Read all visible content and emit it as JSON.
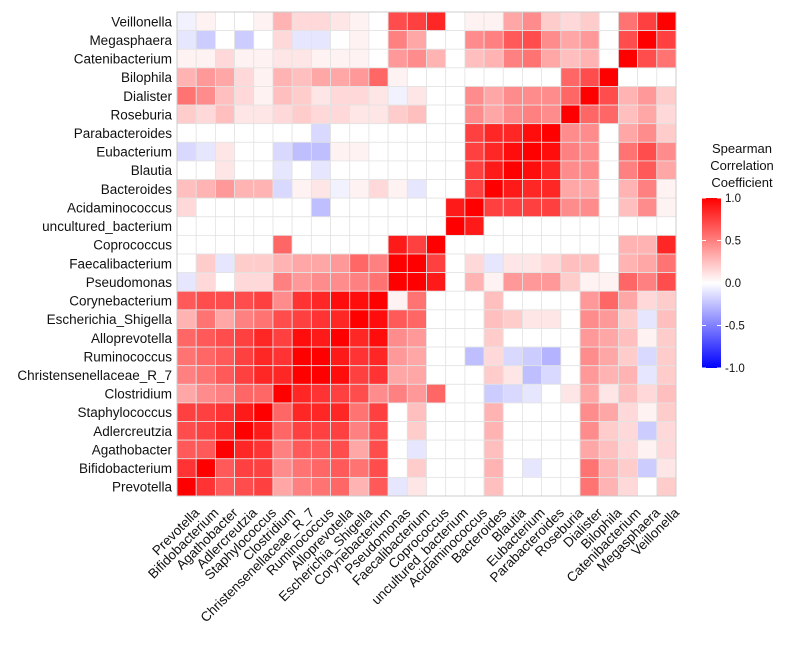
{
  "chart_data": {
    "type": "heatmap",
    "title": "",
    "xlabel": "",
    "ylabel": "",
    "value_range": [
      -1,
      1
    ],
    "grid": true,
    "legend": {
      "title_lines": [
        "Spearman",
        "Correlation",
        "Coefficient"
      ],
      "ticks": [
        {
          "value": 1.0,
          "label": "1.0"
        },
        {
          "value": 0.5,
          "label": "0.5"
        },
        {
          "value": 0.0,
          "label": "0.0"
        },
        {
          "value": -0.5,
          "label": "-0.5"
        },
        {
          "value": -1.0,
          "label": "-1.0"
        }
      ],
      "position": "right",
      "colors": {
        "low": "#0000ff",
        "mid": "#ffffff",
        "high": "#ff0000"
      }
    },
    "x_categories": [
      "Prevotella",
      "Bifidobacterium",
      "Agathobacter",
      "Adlercreutzia",
      "Staphylococcus",
      "Clostridium",
      "Christensenellaceae_R_7",
      "Ruminococcus",
      "Alloprevotella",
      "Escherichia_Shigella",
      "Corynebacterium",
      "Pseudomonas",
      "Faecalibacterium",
      "Coprococcus",
      "uncultured_bacterium",
      "Acidaminococcus",
      "Bacteroides",
      "Blautia",
      "Eubacterium",
      "Parabacteroides",
      "Roseburia",
      "Dialister",
      "Bilophila",
      "Catenibacterium",
      "Megasphaera",
      "Veillonella"
    ],
    "y_categories_top_to_bottom": [
      "Veillonella",
      "Megasphaera",
      "Catenibacterium",
      "Bilophila",
      "Dialister",
      "Roseburia",
      "Parabacteroides",
      "Eubacterium",
      "Blautia",
      "Bacteroides",
      "Acidaminococcus",
      "uncultured_bacterium",
      "Coprococcus",
      "Faecalibacterium",
      "Pseudomonas",
      "Corynebacterium",
      "Escherichia_Shigella",
      "Alloprevotella",
      "Ruminococcus",
      "Christensenellaceae_R_7",
      "Clostridium",
      "Staphylococcus",
      "Adlercreutzia",
      "Agathobacter",
      "Bifidobacterium",
      "Prevotella"
    ],
    "matrix_rows_top_to_bottom": [
      [
        -0.05,
        0.05,
        0,
        0,
        0.05,
        0.3,
        0.15,
        0.15,
        0.1,
        0.05,
        0,
        0.7,
        0.75,
        0.85,
        0,
        0.05,
        0.05,
        0.35,
        0.45,
        0.2,
        0.15,
        0.2,
        0,
        0.55,
        0.75,
        1.0
      ],
      [
        -0.1,
        -0.2,
        0,
        -0.2,
        0,
        0.15,
        -0.1,
        -0.1,
        0,
        0.05,
        0,
        0.5,
        0.35,
        0,
        0,
        0.45,
        0.5,
        0.65,
        0.7,
        0.45,
        0.35,
        0.4,
        0,
        0.7,
        1.0,
        0.75
      ],
      [
        0.05,
        0.05,
        0.15,
        0.05,
        0.05,
        0.1,
        0.1,
        0.05,
        0.05,
        0.05,
        0,
        0.4,
        0.45,
        0.3,
        0,
        0.25,
        0.3,
        0.5,
        0.55,
        0.35,
        0.25,
        0.3,
        0,
        1.0,
        0.7,
        0.55
      ],
      [
        0.3,
        0.4,
        0.35,
        0.15,
        0.05,
        0.3,
        0.25,
        0.35,
        0.35,
        0.4,
        0.6,
        0.05,
        0,
        0,
        0,
        0,
        0,
        0,
        0,
        0,
        0.6,
        0.7,
        1.0,
        0,
        0,
        0
      ],
      [
        0.55,
        0.45,
        0.25,
        0.15,
        0.05,
        0.25,
        0.2,
        0.1,
        0.15,
        0.15,
        0.1,
        -0.05,
        0.1,
        0,
        0,
        0.45,
        0.35,
        0.45,
        0.45,
        0.45,
        0.6,
        1.0,
        0.7,
        0.3,
        0.4,
        0.2
      ],
      [
        0.2,
        0.15,
        0.25,
        0.1,
        0.1,
        0.15,
        0.2,
        0.15,
        0.15,
        0.1,
        0.1,
        0.2,
        0.25,
        0,
        0,
        0.45,
        0.35,
        0.45,
        0.5,
        0.45,
        1.0,
        0.6,
        0.6,
        0.25,
        0.35,
        0.15
      ],
      [
        0,
        0,
        0,
        0,
        0,
        0,
        0,
        -0.15,
        0,
        0,
        0,
        0,
        0,
        0,
        0,
        0.75,
        0.85,
        0.85,
        0.95,
        1.0,
        0.45,
        0.45,
        0,
        0.35,
        0.45,
        0.2
      ],
      [
        -0.15,
        -0.1,
        0.1,
        0,
        0,
        -0.15,
        -0.25,
        -0.25,
        0.05,
        0.05,
        0,
        0,
        0,
        0,
        0,
        0.75,
        0.85,
        0.95,
        1.0,
        0.95,
        0.5,
        0.45,
        0,
        0.55,
        0.7,
        0.45
      ],
      [
        0,
        0,
        0.1,
        0,
        0,
        -0.1,
        0,
        -0.1,
        0,
        0,
        0,
        0,
        0,
        0,
        0,
        0.75,
        0.9,
        1.0,
        0.95,
        0.85,
        0.45,
        0.45,
        0,
        0.5,
        0.65,
        0.35
      ],
      [
        0.25,
        0.3,
        0.4,
        0.3,
        0.3,
        -0.15,
        0.05,
        0.1,
        -0.05,
        0.05,
        0.15,
        0.05,
        -0.1,
        0,
        0,
        0.75,
        1.0,
        0.9,
        0.85,
        0.85,
        0.35,
        0.35,
        0,
        0.3,
        0.5,
        0.05
      ],
      [
        0.15,
        0,
        0,
        0,
        0,
        0,
        0,
        -0.25,
        0,
        0,
        0,
        0,
        0,
        0,
        0.9,
        1.0,
        0.75,
        0.75,
        0.75,
        0.75,
        0.45,
        0.45,
        0,
        0.25,
        0.45,
        0.05
      ],
      [
        0,
        0,
        0,
        0,
        0,
        0,
        0,
        0,
        0,
        0,
        0,
        0,
        0,
        0,
        1.0,
        0.9,
        0,
        0,
        0,
        0,
        0,
        0,
        0,
        0,
        0,
        0
      ],
      [
        0,
        0,
        0,
        0,
        0,
        0.6,
        0,
        0,
        0,
        0,
        0,
        0.9,
        0.75,
        1.0,
        0,
        0,
        0,
        0,
        0,
        0,
        0,
        0,
        0,
        0.3,
        0.3,
        0.85
      ],
      [
        0,
        0.2,
        -0.1,
        0.2,
        0.2,
        0.3,
        0.35,
        0.35,
        0.4,
        0.6,
        0.5,
        1.0,
        1.0,
        0.75,
        0,
        0.15,
        -0.1,
        0.1,
        0.1,
        0.15,
        0.25,
        0.25,
        0,
        0.3,
        0.35,
        0.55
      ],
      [
        -0.1,
        0.15,
        0,
        0.15,
        0.15,
        0.5,
        0.4,
        0.45,
        0.45,
        0.5,
        0.55,
        1.0,
        1.0,
        0.9,
        0,
        0.3,
        0.05,
        0.4,
        0.4,
        0.4,
        0.2,
        0.05,
        0.05,
        0.6,
        0.5,
        0.7
      ],
      [
        0.65,
        0.7,
        0.7,
        0.7,
        0.75,
        0.45,
        0.8,
        0.85,
        0.95,
        0.95,
        1.0,
        0.05,
        0.55,
        0,
        0,
        0,
        0.25,
        0,
        0,
        0,
        0,
        0.4,
        0.6,
        0.35,
        0.15,
        0.2
      ],
      [
        0.3,
        0.55,
        0.35,
        0.5,
        0.55,
        0.7,
        0.75,
        0.8,
        0.85,
        1.0,
        0.95,
        0.65,
        0.6,
        0,
        0,
        0,
        0.25,
        0.2,
        0.1,
        0.1,
        0,
        0.45,
        0.4,
        0.2,
        -0.1,
        0.25
      ],
      [
        0.6,
        0.65,
        0.7,
        0.75,
        0.85,
        0.75,
        0.95,
        0.9,
        1.0,
        0.85,
        0.95,
        0.45,
        0.4,
        0,
        0,
        0,
        0.2,
        0,
        0,
        0,
        0,
        0.4,
        0.35,
        0.25,
        0.05,
        0.2
      ],
      [
        0.55,
        0.6,
        0.65,
        0.75,
        0.85,
        0.8,
        1.0,
        1.0,
        0.9,
        0.8,
        0.85,
        0.4,
        0.35,
        0,
        0,
        -0.25,
        0.15,
        -0.15,
        -0.2,
        -0.3,
        0,
        0.45,
        0.35,
        0.2,
        -0.15,
        0.2
      ],
      [
        0.5,
        0.55,
        0.65,
        0.75,
        0.85,
        0.85,
        1.0,
        1.0,
        0.95,
        0.75,
        0.8,
        0.35,
        0.35,
        0,
        0,
        0,
        0.2,
        0.1,
        -0.25,
        -0.15,
        0,
        0.4,
        0.3,
        0.3,
        -0.1,
        0.2
      ],
      [
        0.35,
        0.45,
        0.5,
        0.6,
        0.6,
        1.0,
        0.85,
        0.8,
        0.75,
        0.7,
        0.45,
        0.5,
        0.4,
        0.6,
        0,
        0,
        -0.2,
        -0.15,
        -0.1,
        0,
        0.1,
        0.35,
        0.1,
        0.25,
        0.15,
        0.25
      ],
      [
        0.75,
        0.75,
        0.8,
        0.9,
        1.0,
        0.6,
        0.85,
        0.85,
        0.85,
        0.55,
        0.75,
        0,
        0.25,
        0,
        0,
        0,
        0.3,
        0,
        0,
        0,
        0,
        0.45,
        0.35,
        0.15,
        0.05,
        0.2
      ],
      [
        0.7,
        0.75,
        0.85,
        1.0,
        0.9,
        0.6,
        0.75,
        0.75,
        0.75,
        0.5,
        0.7,
        0,
        0.2,
        0,
        0,
        0,
        0.3,
        0,
        0,
        0,
        0,
        0.45,
        0.2,
        0.15,
        -0.2,
        0.15
      ],
      [
        0.65,
        0.65,
        1.0,
        0.85,
        0.8,
        0.5,
        0.65,
        0.65,
        0.7,
        0.35,
        0.7,
        0,
        -0.1,
        0,
        0,
        0,
        0.25,
        0,
        0,
        0,
        0,
        0.35,
        0.25,
        0.15,
        0.05,
        0.15
      ],
      [
        0.8,
        1.0,
        0.65,
        0.75,
        0.75,
        0.45,
        0.55,
        0.6,
        0.65,
        0.55,
        0.7,
        0,
        0.2,
        0,
        0,
        0,
        0.3,
        0,
        -0.1,
        0,
        0,
        0.55,
        0.3,
        0.2,
        -0.2,
        0.1
      ],
      [
        1.0,
        0.8,
        0.65,
        0.7,
        0.75,
        0.35,
        0.5,
        0.55,
        0.6,
        0.3,
        0.65,
        -0.1,
        0.1,
        0,
        0,
        0,
        0.25,
        0,
        0,
        0,
        0,
        0.55,
        0.3,
        0.15,
        0,
        0.2
      ]
    ]
  }
}
